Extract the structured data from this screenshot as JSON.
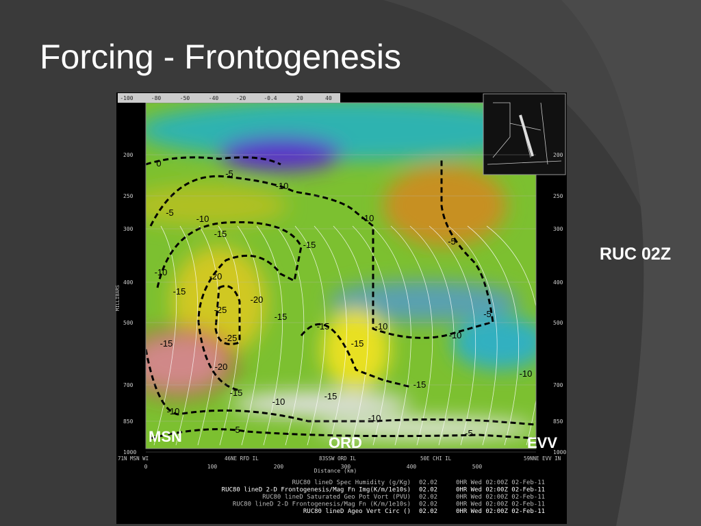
{
  "slide": {
    "title": "Forcing - Frontogenesis",
    "side_label": "RUC 02Z",
    "stations": [
      "MSN",
      "ORD",
      "EVV"
    ],
    "color_bar_labels": [
      "-100",
      "-80",
      "-50",
      "-40",
      "-20",
      "-0.4",
      "20",
      "40"
    ],
    "pressure_axis_title": "MILLIBARS",
    "pressure_levels": [
      200,
      250,
      300,
      400,
      500,
      700,
      850,
      1000
    ],
    "location_labels": [
      "71N MSN WI",
      "46NE RFD IL",
      "83SSW ORD IL",
      "50E CHI IL",
      "59NNE EVV IN"
    ],
    "distance_ticks": [
      0,
      100,
      200,
      300,
      400,
      500
    ],
    "distance_axis_title": "Distance (km)",
    "contour_labels": [
      "0",
      "-5",
      "-10",
      "-5",
      "-10",
      "-10",
      "-15",
      "-15",
      "-5",
      "-10",
      "-20",
      "-15",
      "-20",
      "-25",
      "-15",
      "-15",
      "-10",
      "-10",
      "-25",
      "-15",
      "-15",
      "-5",
      "-20",
      "-10",
      "-15",
      "-15",
      "-10",
      "-15",
      "-10",
      "-10",
      "-5",
      "-5"
    ],
    "legend": [
      {
        "label": "RUC80 lineD  Spec Humidity (g/Kg)",
        "value": "02.02",
        "time": "0HR Wed 02:00Z 02-Feb-11"
      },
      {
        "label": "RUC80 lineD  2-D Frontogenesis/Mag Fn Img(K/m/1e10s)",
        "value": "02.02",
        "time": "0HR Wed 02:00Z 02-Feb-11"
      },
      {
        "label": "RUC80 lineD  Saturated Geo Pot Vort (PVU)",
        "value": "02.02",
        "time": "0HR Wed 02:00Z 02-Feb-11"
      },
      {
        "label": "RUC80 lineD  2-D Frontogenesis/Mag Fn (K/m/1e10s)",
        "value": "02.02",
        "time": "0HR Wed 02:00Z 02-Feb-11"
      },
      {
        "label": "RUC80 lineD  Ageo Vert Circ ()",
        "value": "02.02",
        "time": "0HR Wed 02:00Z 02-Feb-11"
      }
    ]
  }
}
